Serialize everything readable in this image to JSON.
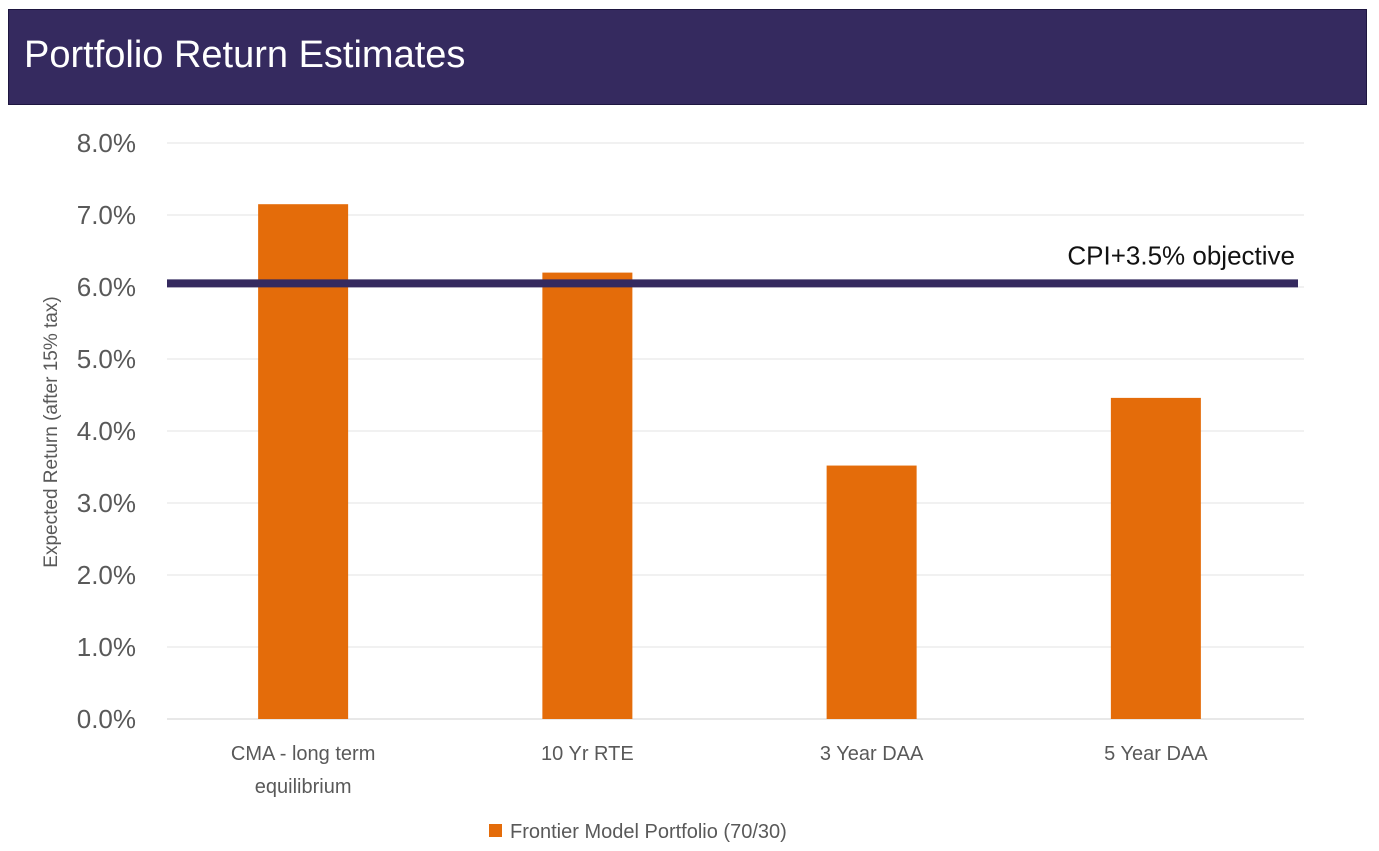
{
  "header": {
    "title": "Portfolio Return Estimates"
  },
  "chart_data": {
    "type": "bar",
    "title": "Portfolio Return Estimates",
    "ylabel": "Expected Return (after 15% tax)",
    "xlabel": "",
    "ylim": [
      0,
      8
    ],
    "y_tick_step": 1,
    "y_tick_format": "percent_1dp",
    "y_tick_labels": [
      "0.0%",
      "1.0%",
      "2.0%",
      "3.0%",
      "4.0%",
      "5.0%",
      "6.0%",
      "7.0%",
      "8.0%"
    ],
    "grid": true,
    "categories": [
      [
        "CMA - long term",
        "equilibrium"
      ],
      [
        "10 Yr RTE"
      ],
      [
        "3 Year DAA"
      ],
      [
        "5 Year DAA"
      ]
    ],
    "series": [
      {
        "name": "Frontier Model Portfolio (70/30)",
        "values": [
          7.15,
          6.2,
          3.52,
          4.46
        ],
        "color": "#e46c0a"
      }
    ],
    "reference_line": {
      "label": "CPI+3.5% objective",
      "value": 6.05,
      "color": "#352a5f"
    },
    "legend_position": "bottom"
  }
}
